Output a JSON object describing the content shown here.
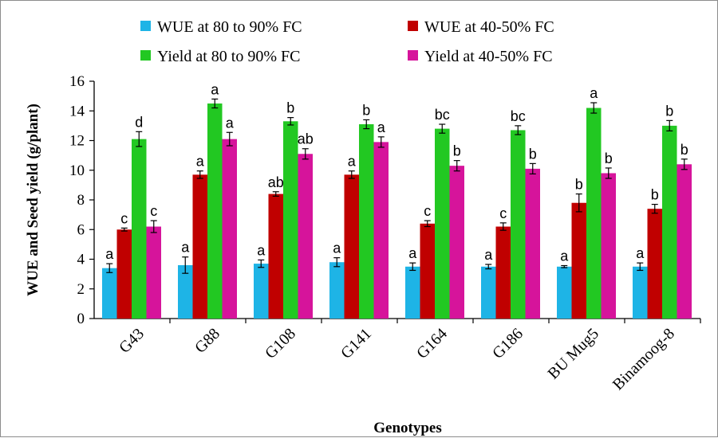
{
  "chart_data": {
    "type": "bar",
    "xlabel": "Genotypes",
    "ylabel": "WUE and Seed yield (g/plant)",
    "ylim": [
      0,
      16
    ],
    "yticks": [
      0,
      2,
      4,
      6,
      8,
      10,
      12,
      14,
      16
    ],
    "grid": false,
    "legend_position": "top",
    "categories": [
      "G43",
      "G88",
      "G108",
      "G141",
      "G164",
      "G186",
      "BU Mug5",
      "Binamoog-8"
    ],
    "series": [
      {
        "name": "WUE at 80 to 90% FC",
        "color": "#1eb4e6",
        "values": [
          3.4,
          3.6,
          3.7,
          3.8,
          3.5,
          3.5,
          3.5,
          3.5
        ],
        "errors": [
          0.3,
          0.55,
          0.25,
          0.3,
          0.25,
          0.15,
          0.07,
          0.25
        ],
        "labels": [
          "a",
          "a",
          "a",
          "a",
          "a",
          "a",
          "a",
          "a"
        ]
      },
      {
        "name": "WUE at 40-50% FC",
        "color": "#c00000",
        "values": [
          6.0,
          9.7,
          8.4,
          9.7,
          6.4,
          6.2,
          7.8,
          7.4
        ],
        "errors": [
          0.1,
          0.25,
          0.15,
          0.25,
          0.2,
          0.25,
          0.6,
          0.3
        ],
        "labels": [
          "c",
          "a",
          "ab",
          "a",
          "c",
          "c",
          "b",
          "b"
        ]
      },
      {
        "name": "Yield at 80 to 90% FC",
        "color": "#22c822",
        "values": [
          12.1,
          14.5,
          13.3,
          13.1,
          12.8,
          12.7,
          14.2,
          13.0
        ],
        "errors": [
          0.5,
          0.3,
          0.25,
          0.3,
          0.3,
          0.3,
          0.35,
          0.35
        ],
        "labels": [
          "d",
          "a",
          "b",
          "b",
          "bc",
          "bc",
          "a",
          "b"
        ]
      },
      {
        "name": "Yield at 40-50% FC",
        "color": "#d6149b",
        "values": [
          6.2,
          12.1,
          11.1,
          11.9,
          10.3,
          10.1,
          9.8,
          10.4
        ],
        "errors": [
          0.4,
          0.45,
          0.35,
          0.35,
          0.35,
          0.35,
          0.35,
          0.35
        ],
        "labels": [
          "c",
          "a",
          "ab",
          "a",
          "b",
          "b",
          "b",
          "b"
        ]
      }
    ]
  }
}
